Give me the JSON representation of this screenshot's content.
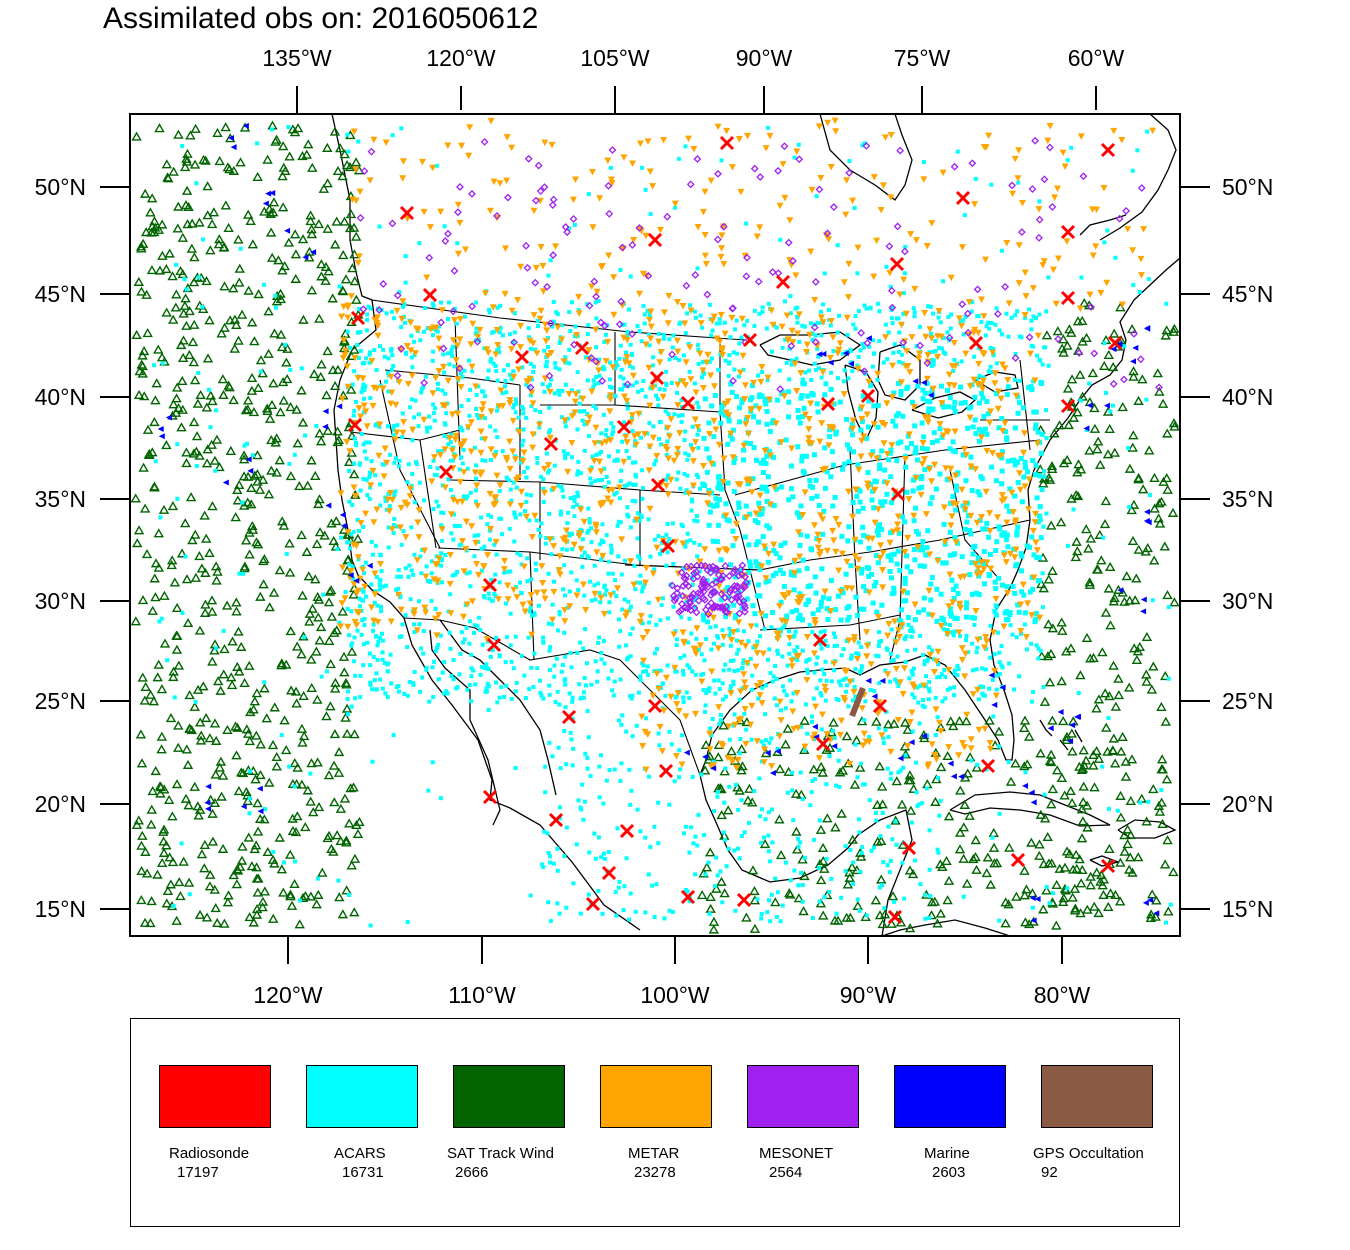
{
  "title": "Assimilated obs on: 2016050612",
  "axes": {
    "top_lon_labels": [
      "135°W",
      "120°W",
      "105°W",
      "90°W",
      "75°W",
      "60°W"
    ],
    "bottom_lon_labels": [
      "120°W",
      "110°W",
      "100°W",
      "90°W",
      "80°W"
    ],
    "lat_labels": [
      "50°N",
      "45°N",
      "40°N",
      "35°N",
      "30°N",
      "25°N",
      "20°N",
      "15°N"
    ]
  },
  "legend": {
    "items": [
      {
        "name": "Radiosonde",
        "count": "17197",
        "color": "#ff0000"
      },
      {
        "name": "ACARS",
        "count": "16731",
        "color": "#00ffff"
      },
      {
        "name": "SAT Track Wind",
        "count": "2666",
        "color": "#006400"
      },
      {
        "name": "METAR",
        "count": "23278",
        "color": "#ffa500"
      },
      {
        "name": "MESONET",
        "count": "2564",
        "color": "#a020f0"
      },
      {
        "name": "Marine",
        "count": "2603",
        "color": "#0000ff"
      },
      {
        "name": "GPS Occultation",
        "count": "92",
        "color": "#8b5a44"
      }
    ]
  },
  "map_data": {
    "projection": "Lambert conformal",
    "lat_range": [
      15,
      50
    ],
    "lon_range": [
      -125,
      -75
    ],
    "regions": [
      "United States",
      "Canada",
      "Mexico",
      "Gulf of Mexico",
      "Caribbean",
      "Pacific Ocean",
      "Atlantic Ocean"
    ],
    "markers": {
      "Radiosonde": "red x",
      "ACARS": "cyan dot",
      "SAT Track Wind": "green open triangle",
      "METAR": "orange inverted triangle",
      "MESONET": "purple diamond",
      "Marine": "blue left triangle",
      "GPS Occultation": "brown segment"
    }
  }
}
